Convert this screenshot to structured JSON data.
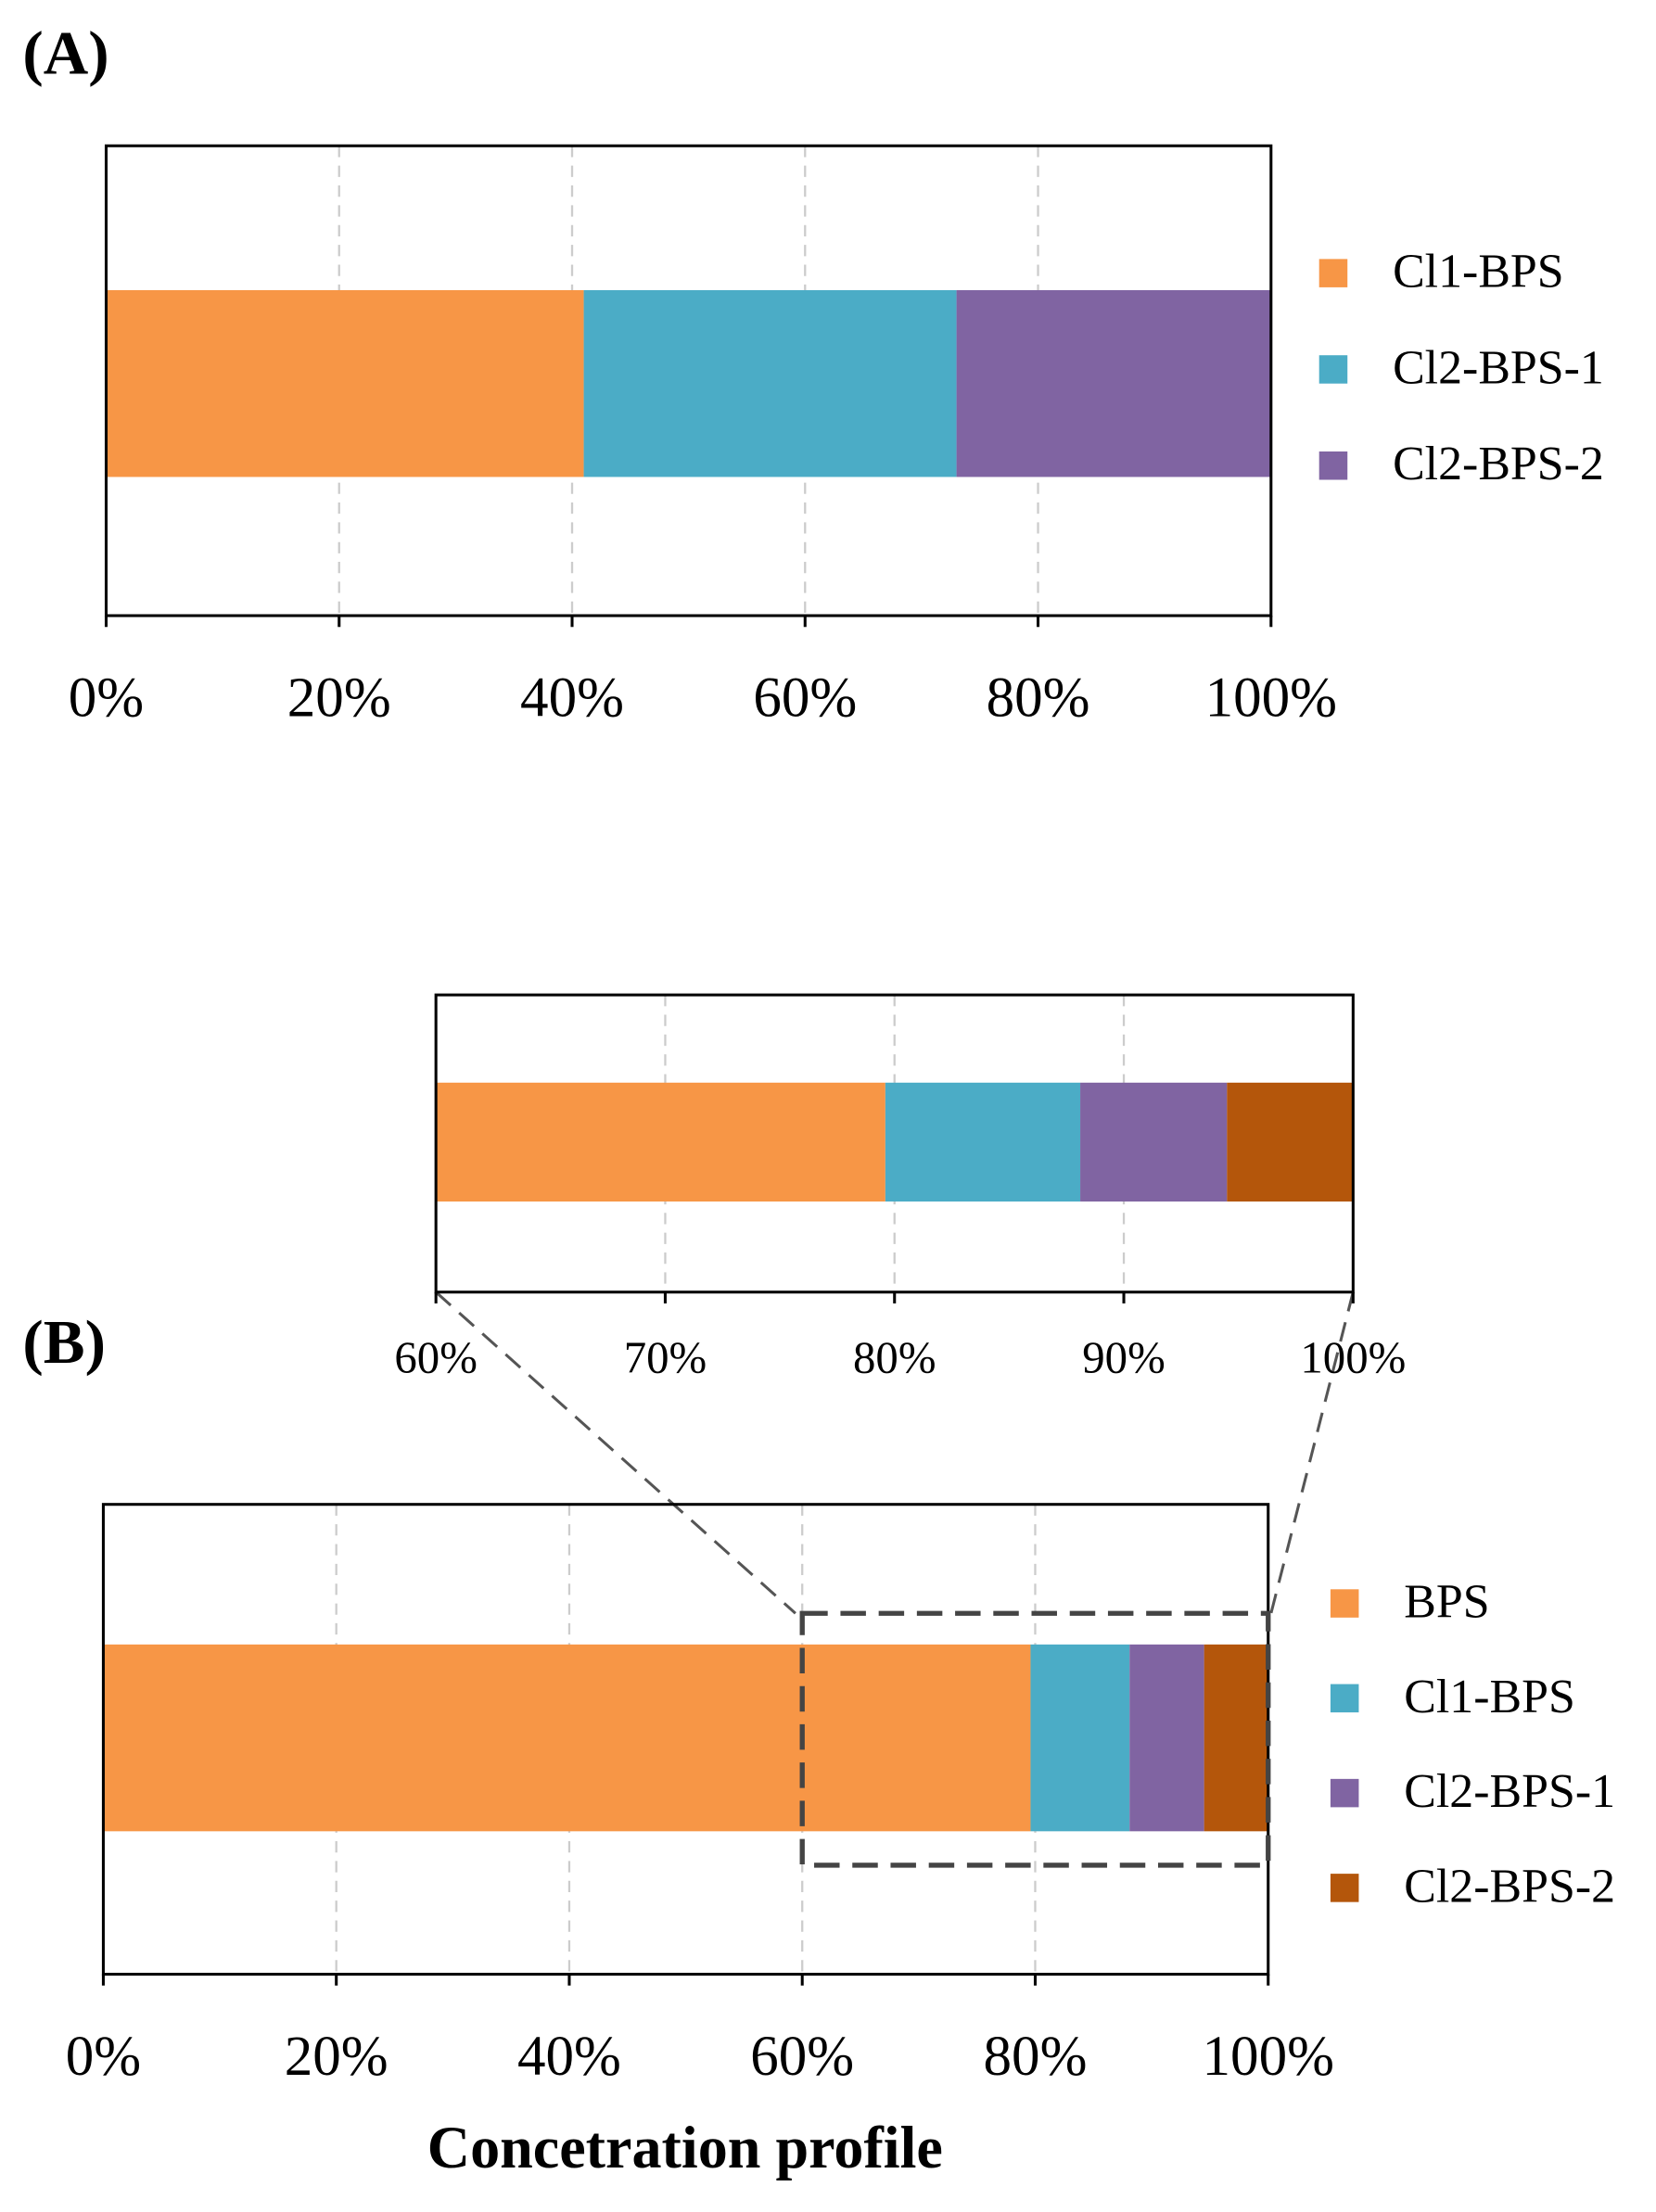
{
  "chart_data": [
    {
      "type": "bar",
      "orientation": "horizontal",
      "stacked": true,
      "panel_label": "(A)",
      "xlim": [
        0,
        100
      ],
      "xticks": [
        {
          "value": 0,
          "label": "0%"
        },
        {
          "value": 20,
          "label": "20%"
        },
        {
          "value": 40,
          "label": "40%"
        },
        {
          "value": 60,
          "label": "60%"
        },
        {
          "value": 80,
          "label": "80%"
        },
        {
          "value": 100,
          "label": "100%"
        }
      ],
      "grid": true,
      "series": [
        {
          "name": "Cl1-BPS",
          "color": "#F79646",
          "values": [
            41
          ]
        },
        {
          "name": "Cl2-BPS-1",
          "color": "#4BACC6",
          "values": [
            32
          ]
        },
        {
          "name": "Cl2-BPS-2",
          "color": "#8064A2",
          "values": [
            27
          ]
        }
      ]
    },
    {
      "type": "bar",
      "orientation": "horizontal",
      "stacked": true,
      "panel_label": "(B)",
      "xlabel": "Concetration profile",
      "xlim": [
        0,
        100
      ],
      "xticks": [
        {
          "value": 0,
          "label": "0%"
        },
        {
          "value": 20,
          "label": "20%"
        },
        {
          "value": 40,
          "label": "40%"
        },
        {
          "value": 60,
          "label": "60%"
        },
        {
          "value": 80,
          "label": "80%"
        },
        {
          "value": 100,
          "label": "100%"
        }
      ],
      "grid": true,
      "series": [
        {
          "name": "BPS",
          "color": "#F79646",
          "values": [
            79.6
          ]
        },
        {
          "name": "Cl1-BPS",
          "color": "#4BACC6",
          "values": [
            8.5
          ]
        },
        {
          "name": "Cl2-BPS-1",
          "color": "#8064A2",
          "values": [
            6.4
          ]
        },
        {
          "name": "Cl2-BPS-2",
          "color": "#B4560B",
          "values": [
            5.5
          ]
        }
      ],
      "inset": {
        "xlim": [
          60,
          100
        ],
        "xticks": [
          {
            "value": 60,
            "label": "60%"
          },
          {
            "value": 70,
            "label": "70%"
          },
          {
            "value": 80,
            "label": "80%"
          },
          {
            "value": 90,
            "label": "90%"
          },
          {
            "value": 100,
            "label": "100%"
          }
        ]
      }
    }
  ]
}
